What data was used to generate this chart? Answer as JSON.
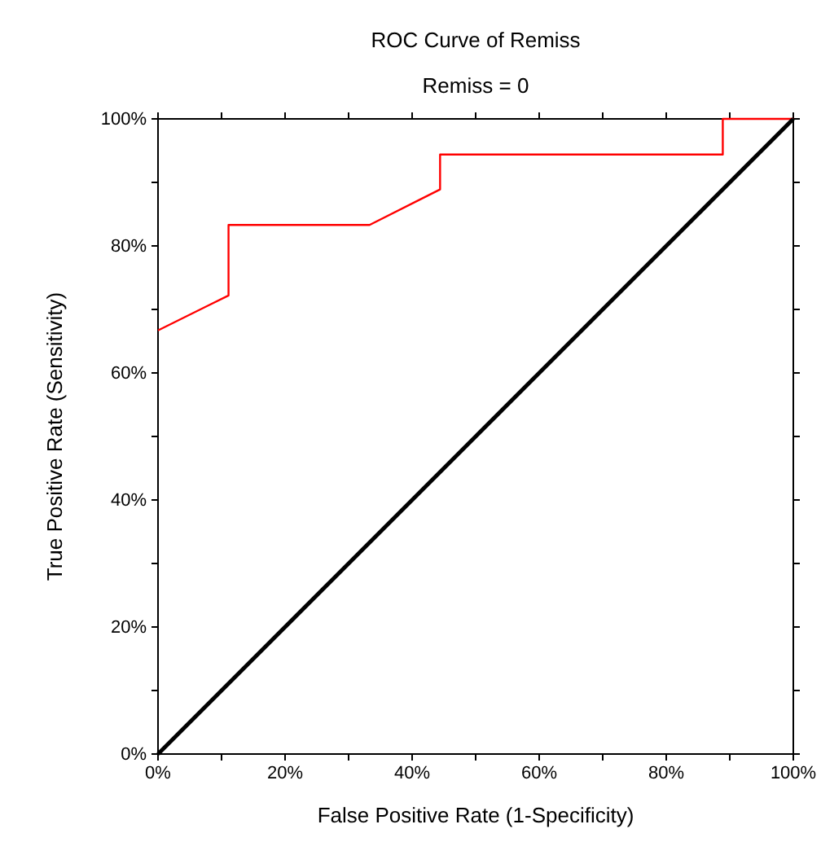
{
  "chart_data": {
    "type": "line",
    "title": "ROC Curve of Remiss",
    "subtitle": "Remiss = 0",
    "xlabel": "False Positive Rate (1-Specificity)",
    "ylabel": "True Positive Rate (Sensitivity)",
    "xlim": [
      0,
      100
    ],
    "ylim": [
      0,
      100
    ],
    "xticks": [
      {
        "value": 0,
        "label": "0%"
      },
      {
        "value": 10,
        "label": null
      },
      {
        "value": 20,
        "label": "20%"
      },
      {
        "value": 30,
        "label": null
      },
      {
        "value": 40,
        "label": "40%"
      },
      {
        "value": 50,
        "label": null
      },
      {
        "value": 60,
        "label": "60%"
      },
      {
        "value": 70,
        "label": null
      },
      {
        "value": 80,
        "label": "80%"
      },
      {
        "value": 90,
        "label": null
      },
      {
        "value": 100,
        "label": "100%"
      }
    ],
    "yticks": [
      {
        "value": 0,
        "label": "0%"
      },
      {
        "value": 10,
        "label": null
      },
      {
        "value": 20,
        "label": "20%"
      },
      {
        "value": 30,
        "label": null
      },
      {
        "value": 40,
        "label": "40%"
      },
      {
        "value": 50,
        "label": null
      },
      {
        "value": 60,
        "label": "60%"
      },
      {
        "value": 70,
        "label": null
      },
      {
        "value": 80,
        "label": "80%"
      },
      {
        "value": 90,
        "label": null
      },
      {
        "value": 100,
        "label": "100%"
      }
    ],
    "grid": false,
    "marker": "none",
    "line_style": "solid",
    "series": [
      {
        "color": "#ff0000",
        "x": [
          0,
          11.1,
          11.1,
          33.3,
          44.4,
          44.4,
          88.9,
          88.9,
          100
        ],
        "values": [
          66.7,
          72.2,
          83.3,
          83.3,
          88.9,
          94.4,
          94.4,
          100,
          100
        ]
      },
      {
        "color": "#000000",
        "x": [
          0,
          100
        ],
        "values": [
          0,
          100
        ]
      }
    ]
  }
}
